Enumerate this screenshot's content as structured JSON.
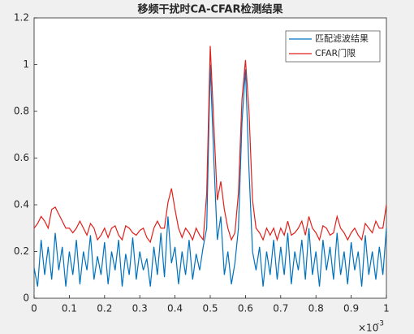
{
  "chart_data": {
    "type": "line",
    "title": "移频干扰时CA-CFAR检测结果",
    "x": [
      0,
      0.01,
      0.02,
      0.03,
      0.04,
      0.05,
      0.06,
      0.07,
      0.08,
      0.09,
      0.1,
      0.11,
      0.12,
      0.13,
      0.14,
      0.15,
      0.16,
      0.17,
      0.18,
      0.19,
      0.2,
      0.21,
      0.22,
      0.23,
      0.24,
      0.25,
      0.26,
      0.27,
      0.28,
      0.29,
      0.3,
      0.31,
      0.32,
      0.33,
      0.34,
      0.35,
      0.36,
      0.37,
      0.38,
      0.39,
      0.4,
      0.41,
      0.42,
      0.43,
      0.44,
      0.45,
      0.46,
      0.47,
      0.48,
      0.49,
      0.5,
      0.51,
      0.52,
      0.53,
      0.54,
      0.55,
      0.56,
      0.57,
      0.58,
      0.59,
      0.6,
      0.61,
      0.62,
      0.63,
      0.64,
      0.65,
      0.66,
      0.67,
      0.68,
      0.69,
      0.7,
      0.71,
      0.72,
      0.73,
      0.74,
      0.75,
      0.76,
      0.77,
      0.78,
      0.79,
      0.8,
      0.81,
      0.82,
      0.83,
      0.84,
      0.85,
      0.86,
      0.87,
      0.88,
      0.89,
      0.9,
      0.91,
      0.92,
      0.93,
      0.94,
      0.95,
      0.96,
      0.97,
      0.98,
      0.99,
      1
    ],
    "series": [
      {
        "name": "匹配滤波结果",
        "color": "#0072bd",
        "values": [
          0.13,
          0.05,
          0.25,
          0.1,
          0.22,
          0.08,
          0.28,
          0.12,
          0.22,
          0.05,
          0.2,
          0.1,
          0.25,
          0.06,
          0.2,
          0.12,
          0.27,
          0.08,
          0.18,
          0.1,
          0.24,
          0.06,
          0.2,
          0.12,
          0.25,
          0.05,
          0.19,
          0.1,
          0.26,
          0.08,
          0.2,
          0.12,
          0.17,
          0.05,
          0.22,
          0.1,
          0.28,
          0.09,
          0.35,
          0.15,
          0.22,
          0.06,
          0.2,
          0.1,
          0.25,
          0.08,
          0.19,
          0.12,
          0.22,
          0.3,
          1.0,
          0.6,
          0.25,
          0.35,
          0.1,
          0.2,
          0.06,
          0.15,
          0.3,
          0.75,
          0.98,
          0.55,
          0.2,
          0.12,
          0.22,
          0.05,
          0.2,
          0.1,
          0.25,
          0.08,
          0.22,
          0.1,
          0.28,
          0.06,
          0.2,
          0.12,
          0.25,
          0.08,
          0.3,
          0.1,
          0.2,
          0.05,
          0.25,
          0.12,
          0.22,
          0.08,
          0.28,
          0.1,
          0.2,
          0.06,
          0.24,
          0.12,
          0.2,
          0.05,
          0.27,
          0.1,
          0.2,
          0.08,
          0.22,
          0.1,
          0.3
        ]
      },
      {
        "name": "CFAR门限",
        "color": "#e0201b",
        "values": [
          0.3,
          0.32,
          0.35,
          0.33,
          0.3,
          0.38,
          0.39,
          0.36,
          0.33,
          0.3,
          0.3,
          0.28,
          0.3,
          0.33,
          0.3,
          0.27,
          0.32,
          0.3,
          0.25,
          0.27,
          0.3,
          0.26,
          0.3,
          0.31,
          0.27,
          0.25,
          0.31,
          0.3,
          0.28,
          0.27,
          0.29,
          0.3,
          0.26,
          0.24,
          0.3,
          0.33,
          0.3,
          0.3,
          0.41,
          0.47,
          0.38,
          0.3,
          0.26,
          0.3,
          0.28,
          0.25,
          0.3,
          0.27,
          0.25,
          0.45,
          1.08,
          0.75,
          0.42,
          0.5,
          0.38,
          0.3,
          0.25,
          0.28,
          0.45,
          0.85,
          1.02,
          0.8,
          0.42,
          0.3,
          0.28,
          0.25,
          0.3,
          0.27,
          0.3,
          0.25,
          0.3,
          0.27,
          0.33,
          0.27,
          0.28,
          0.3,
          0.33,
          0.27,
          0.35,
          0.3,
          0.28,
          0.25,
          0.31,
          0.3,
          0.27,
          0.28,
          0.35,
          0.3,
          0.28,
          0.25,
          0.28,
          0.3,
          0.27,
          0.25,
          0.32,
          0.3,
          0.28,
          0.33,
          0.3,
          0.3,
          0.4
        ]
      }
    ],
    "xlim": [
      0,
      1
    ],
    "xticks": [
      0,
      0.1,
      0.2,
      0.3,
      0.4,
      0.5,
      0.6,
      0.7,
      0.8,
      0.9,
      1
    ],
    "x_multiplier": {
      "base": "×10",
      "exponent": "-3"
    },
    "ylim": [
      0,
      1.2
    ],
    "yticks": [
      0,
      0.2,
      0.4,
      0.6,
      0.8,
      1,
      1.2
    ],
    "legend": "northeast"
  }
}
